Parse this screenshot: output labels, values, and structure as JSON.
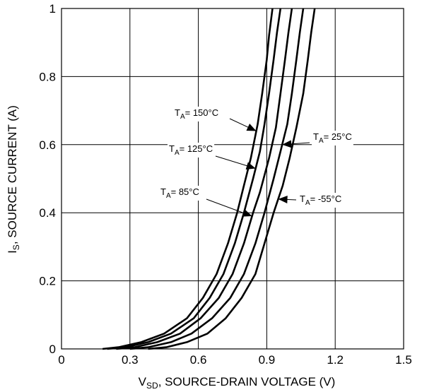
{
  "chart_data": {
    "type": "line",
    "xlabel": {
      "main": "V",
      "sub": "SD",
      "rest": ", SOURCE-DRAIN VOLTAGE (V)"
    },
    "ylabel": {
      "main": "I",
      "sub": "S",
      "rest": ", SOURCE CURRENT (A)"
    },
    "xlim": [
      0,
      1.5
    ],
    "ylim": [
      0,
      1
    ],
    "x_ticks": [
      {
        "v": 0,
        "label": "0"
      },
      {
        "v": 0.3,
        "label": "0.3"
      },
      {
        "v": 0.6,
        "label": "0.6"
      },
      {
        "v": 0.9,
        "label": "0.9"
      },
      {
        "v": 1.2,
        "label": "1.2"
      },
      {
        "v": 1.5,
        "label": "1.5"
      }
    ],
    "y_ticks": [
      {
        "v": 0,
        "label": "0"
      },
      {
        "v": 0.2,
        "label": "0.2"
      },
      {
        "v": 0.4,
        "label": "0.4"
      },
      {
        "v": 0.6,
        "label": "0.6"
      },
      {
        "v": 0.8,
        "label": "0.8"
      },
      {
        "v": 1,
        "label": "1"
      }
    ],
    "grid": true,
    "legend": "none",
    "line_color": "#000000",
    "series": [
      {
        "name": "T_A = 150°C",
        "points": [
          [
            0.18,
            0
          ],
          [
            0.25,
            0.005
          ],
          [
            0.35,
            0.02
          ],
          [
            0.45,
            0.045
          ],
          [
            0.55,
            0.09
          ],
          [
            0.62,
            0.15
          ],
          [
            0.68,
            0.22
          ],
          [
            0.73,
            0.31
          ],
          [
            0.77,
            0.4
          ],
          [
            0.8,
            0.48
          ],
          [
            0.83,
            0.56
          ],
          [
            0.86,
            0.66
          ],
          [
            0.88,
            0.75
          ],
          [
            0.9,
            0.85
          ],
          [
            0.91,
            0.92
          ],
          [
            0.925,
            1.0
          ]
        ]
      },
      {
        "name": "T_A = 125°C",
        "points": [
          [
            0.2,
            0
          ],
          [
            0.28,
            0.005
          ],
          [
            0.38,
            0.02
          ],
          [
            0.48,
            0.045
          ],
          [
            0.58,
            0.09
          ],
          [
            0.65,
            0.15
          ],
          [
            0.71,
            0.22
          ],
          [
            0.76,
            0.31
          ],
          [
            0.8,
            0.4
          ],
          [
            0.84,
            0.5
          ],
          [
            0.87,
            0.58
          ],
          [
            0.89,
            0.66
          ],
          [
            0.91,
            0.75
          ],
          [
            0.93,
            0.85
          ],
          [
            0.945,
            0.93
          ],
          [
            0.96,
            1.0
          ]
        ]
      },
      {
        "name": "T_A = 85°C",
        "points": [
          [
            0.24,
            0
          ],
          [
            0.32,
            0.005
          ],
          [
            0.42,
            0.02
          ],
          [
            0.52,
            0.045
          ],
          [
            0.61,
            0.09
          ],
          [
            0.69,
            0.15
          ],
          [
            0.75,
            0.22
          ],
          [
            0.8,
            0.31
          ],
          [
            0.84,
            0.4
          ],
          [
            0.87,
            0.46
          ],
          [
            0.91,
            0.56
          ],
          [
            0.94,
            0.65
          ],
          [
            0.96,
            0.75
          ],
          [
            0.98,
            0.85
          ],
          [
            0.995,
            0.93
          ],
          [
            1.01,
            1.0
          ]
        ]
      },
      {
        "name": "T_A = 25°C",
        "points": [
          [
            0.3,
            0
          ],
          [
            0.38,
            0.005
          ],
          [
            0.48,
            0.02
          ],
          [
            0.57,
            0.045
          ],
          [
            0.66,
            0.09
          ],
          [
            0.74,
            0.15
          ],
          [
            0.8,
            0.22
          ],
          [
            0.85,
            0.31
          ],
          [
            0.89,
            0.4
          ],
          [
            0.93,
            0.5
          ],
          [
            0.96,
            0.58
          ],
          [
            0.99,
            0.66
          ],
          [
            1.01,
            0.75
          ],
          [
            1.03,
            0.85
          ],
          [
            1.045,
            0.93
          ],
          [
            1.06,
            1.0
          ]
        ]
      },
      {
        "name": "T_A = -55°C",
        "points": [
          [
            0.38,
            0
          ],
          [
            0.46,
            0.005
          ],
          [
            0.55,
            0.02
          ],
          [
            0.64,
            0.045
          ],
          [
            0.72,
            0.09
          ],
          [
            0.79,
            0.15
          ],
          [
            0.85,
            0.22
          ],
          [
            0.89,
            0.31
          ],
          [
            0.93,
            0.4
          ],
          [
            0.97,
            0.48
          ],
          [
            1.0,
            0.56
          ],
          [
            1.03,
            0.65
          ],
          [
            1.06,
            0.75
          ],
          [
            1.08,
            0.85
          ],
          [
            1.095,
            0.93
          ],
          [
            1.11,
            1.0
          ]
        ]
      }
    ],
    "annotations": [
      {
        "text": "= 150°C",
        "series": 0,
        "at_y": 0.64
      },
      {
        "text": "= 125°C",
        "series": 1,
        "at_y": 0.53
      },
      {
        "text": "= 85°C",
        "series": 2,
        "at_y": 0.39
      },
      {
        "text": "= 25°C",
        "series": 3,
        "at_y": 0.6
      },
      {
        "text": "= -55°C",
        "series": 4,
        "at_y": 0.44
      }
    ],
    "annotation_symbol": {
      "main": "T",
      "sub": "A"
    }
  }
}
